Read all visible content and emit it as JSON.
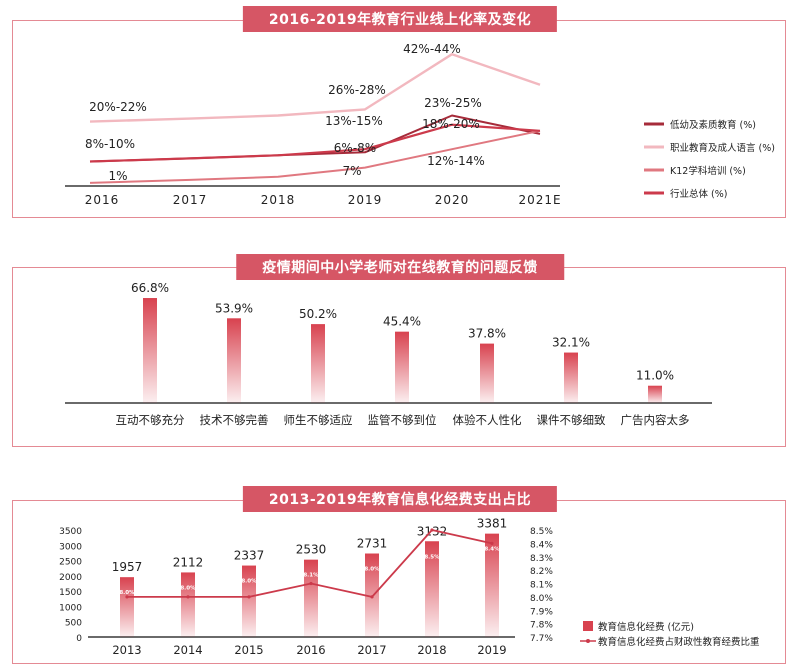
{
  "titles": {
    "chart1": "2016-2019年教育行业线上化率及变化",
    "chart2": "疫情期间中小学老师对在线教育的问题反馈",
    "chart3": "2013-2019年教育信息化经费支出占比"
  },
  "colors": {
    "accent": "#d65665",
    "series_dark": "#a62b3a",
    "series_pink": "#f2b8bf",
    "series_mid": "#e07880",
    "series_red": "#cc3a4b",
    "bar_top": "#d8424f"
  },
  "chart_data": [
    {
      "type": "line",
      "title": "2016-2019年教育行业线上化率及变化",
      "x": [
        "2016",
        "2017",
        "2018",
        "2019",
        "2020",
        "2021E"
      ],
      "ylabel": "",
      "legend_position": "right",
      "series": [
        {
          "name": "低幼及素质教育 (%)",
          "values": [
            8,
            9,
            10,
            11,
            23,
            17
          ]
        },
        {
          "name": "职业教育及成人语言 (%)",
          "values": [
            21,
            22,
            23,
            25,
            43,
            33
          ]
        },
        {
          "name": "K12学科培训 (%)",
          "values": [
            1,
            2,
            3,
            6,
            12,
            18
          ]
        },
        {
          "name": "行业总体 (%)",
          "values": [
            8,
            9,
            10,
            12,
            20,
            18
          ]
        }
      ],
      "annotations": [
        "20%-22%",
        "8%-10%",
        "1%",
        "26%-28%",
        "13%-15%",
        "6%-8%",
        "7%",
        "42%-44%",
        "23%-25%",
        "18%-20%",
        "12%-14%"
      ]
    },
    {
      "type": "bar",
      "title": "疫情期间中小学老师对在线教育的问题反馈",
      "categories": [
        "互动不够充分",
        "技术不够完善",
        "师生不够适应",
        "监管不够到位",
        "体验不人性化",
        "课件不够细致",
        "广告内容太多"
      ],
      "values": [
        66.8,
        53.9,
        50.2,
        45.4,
        37.8,
        32.1,
        11.0
      ],
      "value_labels": [
        "66.8%",
        "53.9%",
        "50.2%",
        "45.4%",
        "37.8%",
        "32.1%",
        "11.0%"
      ],
      "ylim": [
        0,
        70
      ]
    },
    {
      "type": "bar",
      "title": "2013-2019年教育信息化经费支出占比",
      "categories": [
        "2013",
        "2014",
        "2015",
        "2016",
        "2017",
        "2018",
        "2019"
      ],
      "left_ticks": [
        "3500",
        "3000",
        "2500",
        "2000",
        "1500",
        "1000",
        "500",
        "0"
      ],
      "right_ticks": [
        "8.5%",
        "8.4%",
        "8.3%",
        "8.2%",
        "8.1%",
        "8.0%",
        "7.9%",
        "7.8%",
        "7.7%"
      ],
      "ylim": [
        0,
        3500
      ],
      "y2lim": [
        7.7,
        8.5
      ],
      "series": [
        {
          "name": "教育信息化经费 (亿元)",
          "values": [
            1957,
            2112,
            2337,
            2530,
            2731,
            3132,
            3381
          ],
          "value_labels": [
            "1957",
            "2112",
            "2337",
            "2530",
            "2731",
            "3132",
            "3381"
          ]
        },
        {
          "name": "教育信息化经费占财政性教育经费比重",
          "values": [
            8.0,
            8.0,
            8.0,
            8.1,
            8.0,
            8.5,
            8.4
          ],
          "value_labels": [
            "8.0%",
            "8.0%",
            "8.0%",
            "8.1%",
            "8.0%",
            "8.5%",
            "8.4%"
          ]
        }
      ]
    }
  ]
}
